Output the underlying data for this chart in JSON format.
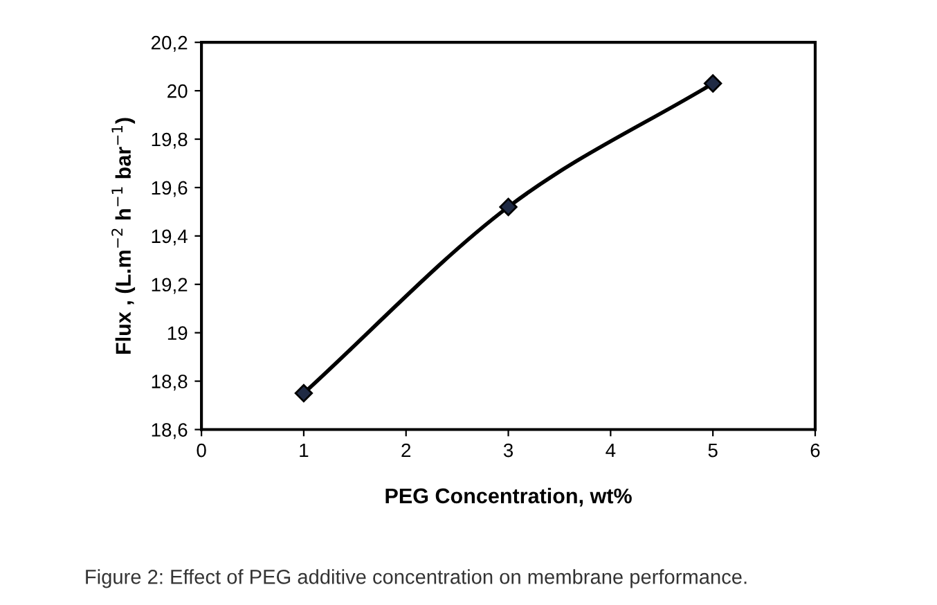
{
  "chart_data": {
    "type": "line",
    "xlabel": "PEG Concentration, wt%",
    "ylabel": "Flux , (L.m$^{−2}$ h$^{−1}$ bar$^{−1}$)",
    "x": [
      1,
      3,
      5
    ],
    "series": [
      {
        "color": "#000000",
        "values": [
          18.75,
          19.52,
          20.03
        ]
      }
    ],
    "marker": "diamond",
    "line_style": "solid",
    "xlim": [
      0,
      6
    ],
    "xticks": [
      0,
      1,
      2,
      3,
      4,
      5,
      6
    ],
    "ylim": [
      18.6,
      20.2
    ],
    "yticks": [
      {
        "value": 18.6,
        "label": "18,6"
      },
      {
        "value": 18.8,
        "label": "18,8"
      },
      19,
      {
        "value": 19.2,
        "label": "19,2"
      },
      {
        "value": 19.4,
        "label": "19,4"
      },
      {
        "value": 19.6,
        "label": "19,6"
      },
      {
        "value": 19.8,
        "label": "19,8"
      },
      20,
      {
        "value": 20.2,
        "label": "20,2"
      }
    ],
    "grid": false,
    "legend": false,
    "annotations": [
      "Figure 2: Effect of PEG additive concentration on membrane performance."
    ]
  }
}
